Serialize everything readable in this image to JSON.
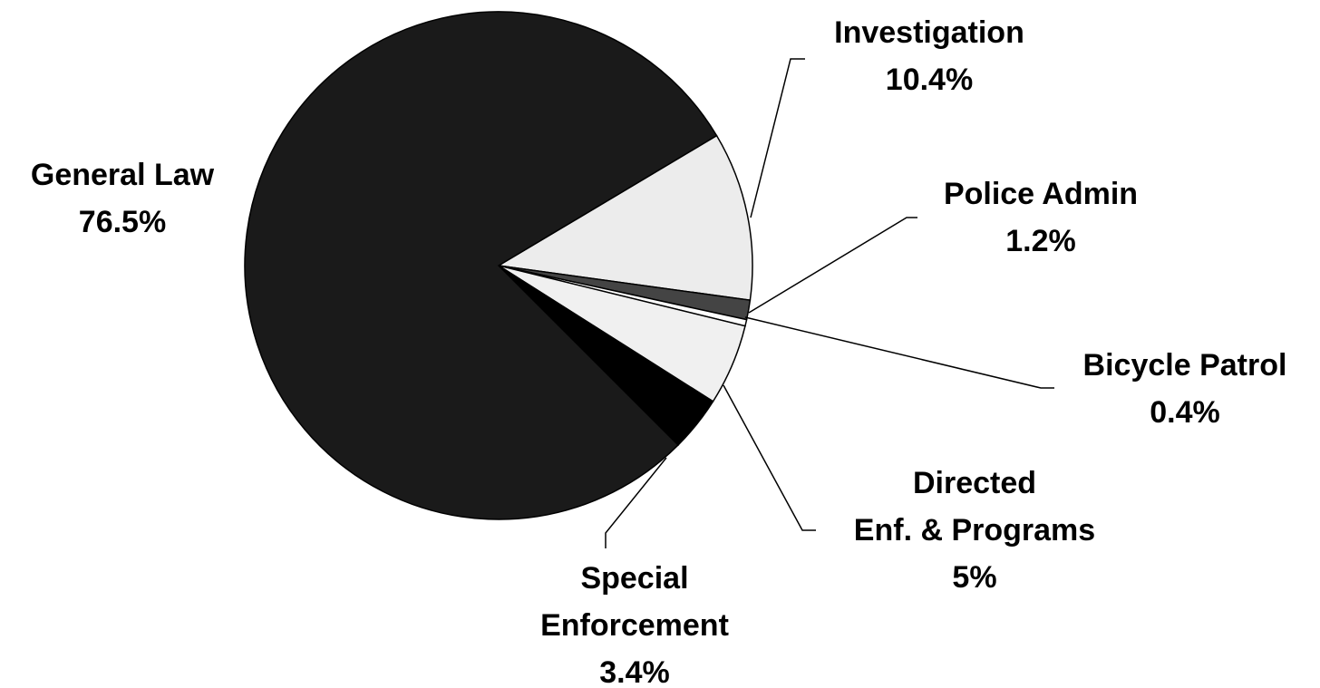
{
  "chart_data": {
    "type": "pie",
    "categories": [
      [
        "Investigation"
      ],
      [
        "Police Admin"
      ],
      [
        "Bicycle Patrol"
      ],
      [
        "Directed",
        "Enf. &  Programs"
      ],
      [
        "Special",
        "Enforcement"
      ],
      [
        "General Law"
      ]
    ],
    "values": [
      10.4,
      1.2,
      0.4,
      5,
      3.4,
      76.5
    ],
    "value_labels": [
      "10.4%",
      "1.2%",
      "0.4%",
      "5%",
      "3.4%",
      "76.5%"
    ],
    "colors": [
      "#ececec",
      "#444444",
      "#ffffff",
      "#f0f0f0",
      "#000000",
      "#1a1a1a"
    ]
  }
}
